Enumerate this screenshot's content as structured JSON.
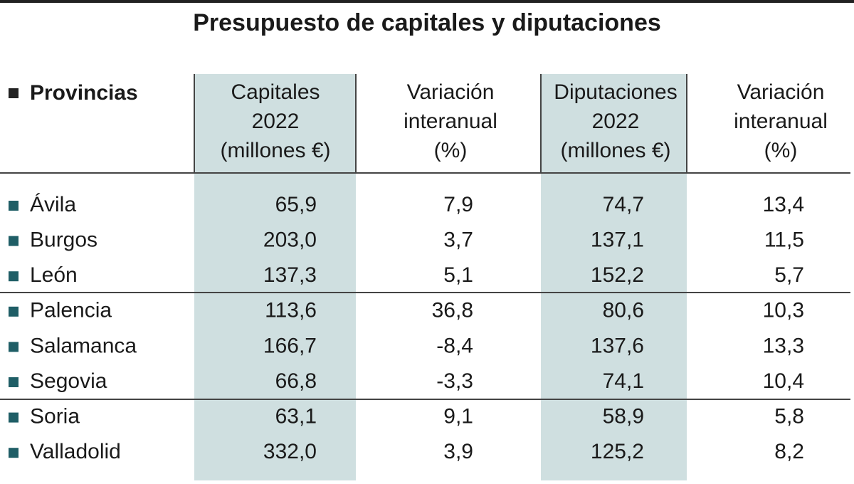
{
  "title": "Presupuesto de capitales y diputaciones",
  "header": {
    "label": "Provincias",
    "columns": [
      [
        "Capitales",
        "2022",
        "(millones €)"
      ],
      [
        "Variación",
        "interanual",
        "(%)"
      ],
      [
        "Diputaciones",
        "2022",
        "(millones €)"
      ],
      [
        "Variación",
        "interanual",
        "(%)"
      ]
    ]
  },
  "rows": [
    [
      "Ávila",
      "65,9",
      "7,9",
      "74,7",
      "13,4"
    ],
    [
      "Burgos",
      "203,0",
      "3,7",
      "137,1",
      "11,5"
    ],
    [
      "León",
      "137,3",
      "5,1",
      "152,2",
      "5,7"
    ],
    [
      "Palencia",
      "113,6",
      "36,8",
      "80,6",
      "10,3"
    ],
    [
      "Salamanca",
      "166,7",
      "-8,4",
      "137,6",
      "13,3"
    ],
    [
      "Segovia",
      "66,8",
      "-3,3",
      "74,1",
      "10,4"
    ],
    [
      "Soria",
      "63,1",
      "9,1",
      "58,9",
      "5,8"
    ],
    [
      "Valladolid",
      "332,0",
      "3,9",
      "125,2",
      "8,2"
    ]
  ]
}
